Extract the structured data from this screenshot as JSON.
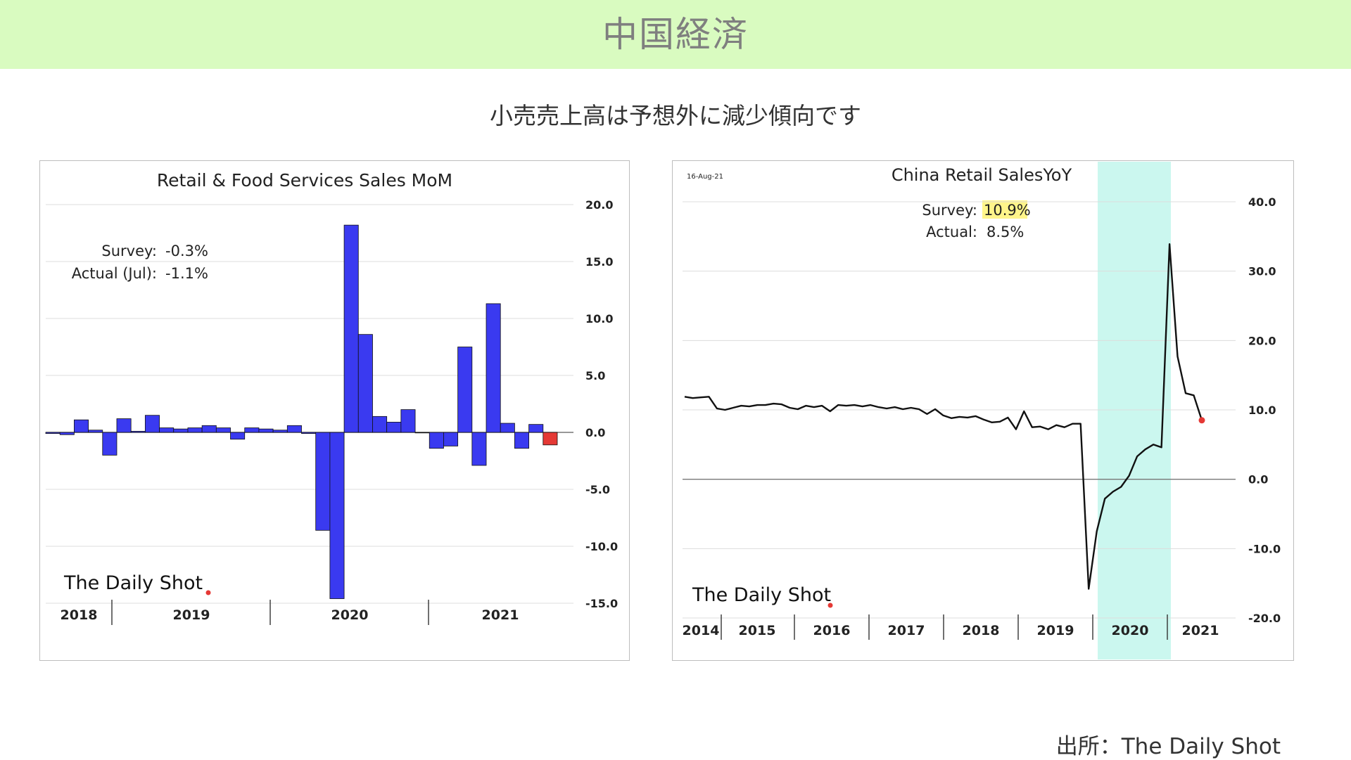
{
  "header": {
    "title": "中国経済"
  },
  "subtitle": "小売売上高は予想外に減少傾向です",
  "source": "出所：The Daily Shot",
  "colors": {
    "header_bg": "#d9fbc0",
    "bar": "#3a3af0",
    "bar_latest": "#e53935",
    "shade": "#cbf7ef",
    "highlight": "#fff58a"
  },
  "chart_data": [
    {
      "type": "bar",
      "title": "Retail & Food Services Sales MoM",
      "annotations": {
        "survey_label": "Survey:",
        "survey_value": "-0.3%",
        "actual_label": "Actual (Jul):",
        "actual_value": "-1.1%"
      },
      "logo": "The Daily Shot",
      "ylim": [
        -15,
        20
      ],
      "yticks": [
        "20.0",
        "15.0",
        "10.0",
        "5.0",
        "0.0",
        "-5.0",
        "-10.0",
        "-15.0"
      ],
      "x_labels": [
        "2018",
        "2019",
        "2020",
        "2021"
      ],
      "values": [
        -0.1,
        -0.2,
        1.1,
        0.2,
        -2.0,
        1.2,
        0.1,
        1.5,
        0.4,
        0.3,
        0.4,
        0.6,
        0.4,
        -0.6,
        0.4,
        0.3,
        0.2,
        0.6,
        -0.1,
        -8.6,
        -14.6,
        18.2,
        8.6,
        1.4,
        0.9,
        2.0,
        0.0,
        -1.4,
        -1.2,
        7.5,
        -2.9,
        11.3,
        0.8,
        -1.4,
        0.7,
        -1.1
      ],
      "highlight_last": true
    },
    {
      "type": "line",
      "title": "China Retail SalesYoY",
      "date_label": "16-Aug-21",
      "annotations": {
        "survey_label": "Survey:",
        "survey_value": "10.9%",
        "actual_label": "Actual:",
        "actual_value": "8.5%"
      },
      "logo": "The Daily Shot",
      "ylim": [
        -20,
        40
      ],
      "yticks": [
        "40.0",
        "30.0",
        "20.0",
        "10.0",
        "0.0",
        "-10.0",
        "-20.0"
      ],
      "x_labels": [
        "2014",
        "2015",
        "2016",
        "2017",
        "2018",
        "2019",
        "2020",
        "2021"
      ],
      "shaded_period": "2020",
      "values": [
        11.9,
        11.7,
        11.8,
        11.9,
        10.2,
        10.0,
        10.3,
        10.6,
        10.5,
        10.7,
        10.7,
        10.9,
        10.8,
        10.3,
        10.1,
        10.6,
        10.4,
        10.6,
        9.8,
        10.7,
        10.6,
        10.7,
        10.5,
        10.7,
        10.4,
        10.2,
        10.4,
        10.1,
        10.3,
        10.1,
        9.4,
        10.1,
        9.2,
        8.8,
        9.0,
        8.9,
        9.1,
        8.6,
        8.2,
        8.3,
        8.9,
        7.2,
        9.8,
        7.5,
        7.6,
        7.2,
        7.8,
        7.5,
        8.0,
        8.0,
        -15.8,
        -7.5,
        -2.8,
        -1.8,
        -1.1,
        0.5,
        3.3,
        4.3,
        5.0,
        4.6,
        33.9,
        17.7,
        12.4,
        12.1,
        8.5
      ],
      "highlight_last": true
    }
  ]
}
